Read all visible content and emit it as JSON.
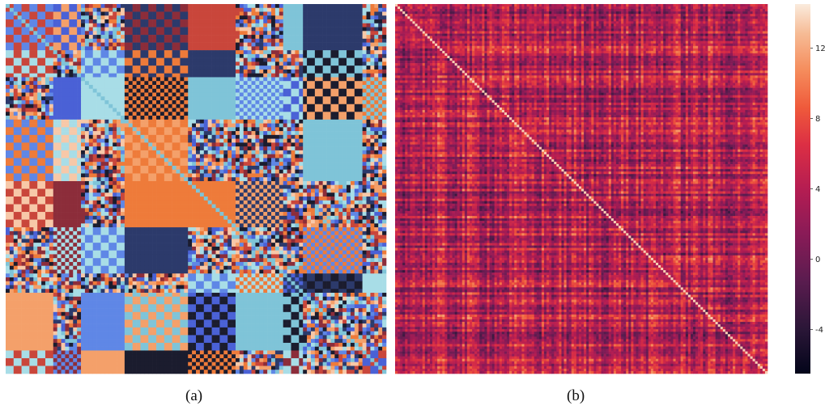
{
  "chart_data": [
    {
      "type": "heatmap",
      "caption": "(a)",
      "grid_size": 96,
      "colors": [
        "#1b1c2e",
        "#2c3a6b",
        "#4a61d6",
        "#5f87e6",
        "#7fc4d8",
        "#a8dde7",
        "#f4a06a",
        "#ee7b3a",
        "#c9463b",
        "#8c2d3a",
        "#f7c8a8"
      ],
      "colorbar": false
    },
    {
      "type": "heatmap",
      "caption": "(b)",
      "grid_size": 150,
      "colorscale": "rocket",
      "colorbar": true,
      "colorbar_ticks": [
        "12",
        "8",
        "4",
        "0",
        "-4"
      ],
      "colorbar_tick_values": [
        12,
        8,
        4,
        0,
        -4
      ],
      "zlim": [
        -6.5,
        14.5
      ]
    }
  ]
}
